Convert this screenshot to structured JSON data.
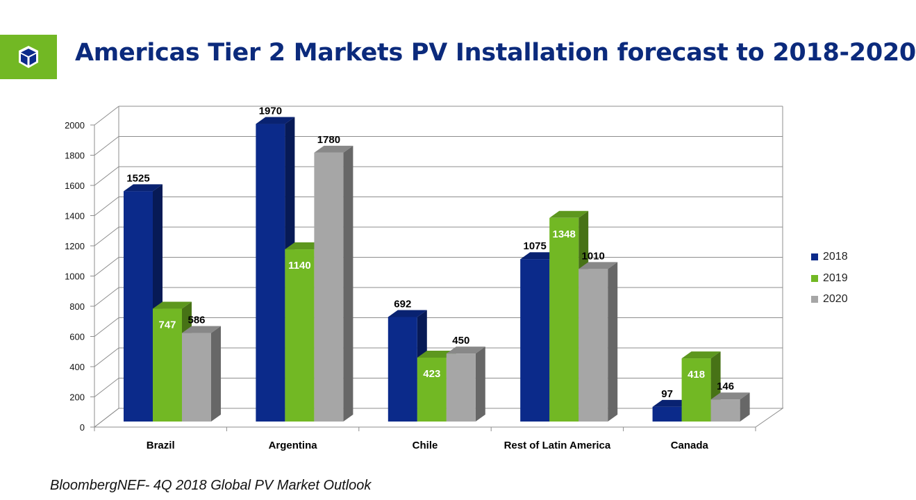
{
  "title": "Americas Tier 2 Markets PV Installation forecast to 2018-2020",
  "source": "BloombergNEF- 4Q 2018 Global PV Market Outlook",
  "logo_icon": "cube-icon",
  "colors": {
    "series_2018": "#0b2a8a",
    "series_2019": "#72b824",
    "series_2020": "#a6a6a6",
    "title": "#0b2a7c",
    "logo_bg": "#72b824"
  },
  "chart_data": {
    "type": "bar",
    "categories": [
      "Brazil",
      "Argentina",
      "Chile",
      "Rest of Latin America",
      "Canada"
    ],
    "series": [
      {
        "name": "2018",
        "values": [
          1525,
          1970,
          692,
          1075,
          97
        ]
      },
      {
        "name": "2019",
        "values": [
          747,
          1140,
          423,
          1348,
          418
        ]
      },
      {
        "name": "2020",
        "values": [
          586,
          1780,
          450,
          1010,
          146
        ]
      }
    ],
    "ylim": [
      0,
      2000
    ],
    "yticks": [
      "0",
      "200",
      "400",
      "600",
      "800",
      "1000",
      "1200",
      "1400",
      "1600",
      "1800",
      "2000"
    ],
    "legend_position": "right",
    "grid": true,
    "style": "3d-clustered-column"
  }
}
